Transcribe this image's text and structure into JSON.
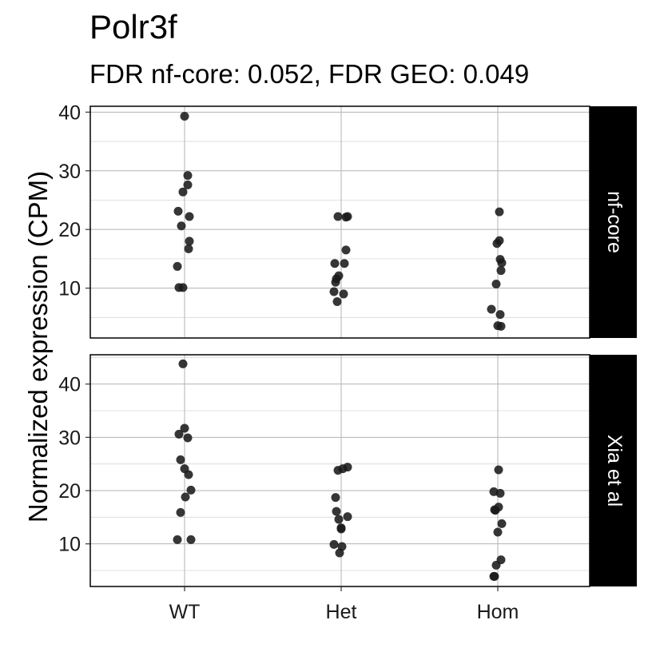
{
  "title": "Polr3f",
  "subtitle": "FDR nf-core: 0.052, FDR GEO: 0.049",
  "chart_data": {
    "type": "scatter",
    "ylabel": "Normalized expression (CPM)",
    "xlabel": "",
    "categories": [
      "WT",
      "Het",
      "Hom"
    ],
    "grid": true,
    "panels": [
      {
        "strip_label": "nf-core",
        "ylim": [
          1.5,
          41
        ],
        "yticks": [
          10,
          20,
          30,
          40
        ],
        "groups": [
          {
            "category": "WT",
            "values": [
              39.3,
              29.2,
              27.6,
              26.4,
              23.1,
              22.2,
              20.6,
              18.0,
              16.7,
              13.7,
              10.1,
              10.1
            ]
          },
          {
            "category": "Het",
            "values": [
              22.2,
              22.2,
              22.1,
              16.5,
              14.2,
              14.2,
              12.1,
              11.6,
              11.0,
              9.4,
              9.0,
              7.7
            ]
          },
          {
            "category": "Hom",
            "values": [
              23.0,
              18.1,
              17.6,
              14.9,
              14.3,
              13.0,
              10.7,
              6.4,
              5.5,
              3.6,
              3.5
            ]
          }
        ]
      },
      {
        "strip_label": "Xia et al",
        "ylim": [
          2,
          45.5
        ],
        "yticks": [
          10,
          20,
          30,
          40
        ],
        "groups": [
          {
            "category": "WT",
            "values": [
              43.8,
              31.7,
              30.6,
              29.9,
              25.8,
              24.1,
              23.0,
              20.1,
              18.8,
              15.9,
              10.8,
              10.8
            ]
          },
          {
            "category": "Het",
            "values": [
              24.4,
              24.1,
              23.8,
              18.7,
              16.1,
              15.1,
              14.6,
              13.0,
              12.8,
              9.9,
              9.5,
              8.3
            ]
          },
          {
            "category": "Hom",
            "values": [
              23.9,
              19.8,
              19.5,
              16.9,
              16.4,
              16.3,
              13.8,
              12.2,
              7.0,
              6.0,
              3.9,
              3.9
            ]
          }
        ]
      }
    ],
    "point_color": "#1a1a1a"
  }
}
